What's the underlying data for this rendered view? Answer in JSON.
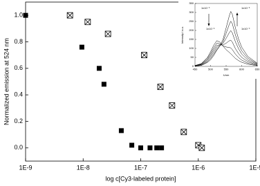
{
  "chart_data": [
    {
      "type": "scatter",
      "x_label": "log c[Cy3-labeled protein]",
      "y_label": "Normalized emission at 524 nm",
      "xscale": "log",
      "xlim": [
        1e-09,
        1e-05
      ],
      "xticks": [
        {
          "value": 1e-09,
          "label": "1E-9"
        },
        {
          "value": 1e-08,
          "label": "1E-8"
        },
        {
          "value": 1e-07,
          "label": "1E-7"
        },
        {
          "value": 1e-06,
          "label": "1E-6"
        },
        {
          "value": 1e-05,
          "label": "1E-5"
        }
      ],
      "ylim": [
        -0.1,
        1.1
      ],
      "yticks": [
        {
          "value": 0,
          "label": "0.0"
        },
        {
          "value": 0.2,
          "label": "0.2"
        },
        {
          "value": 0.4,
          "label": "0.4"
        },
        {
          "value": 0.6,
          "label": "0.6"
        },
        {
          "value": 0.8,
          "label": "0.8"
        },
        {
          "value": 1,
          "label": "1.0"
        }
      ],
      "series": [
        {
          "marker": "square-filled",
          "color": "#000000",
          "x": [
            1e-09,
            9.5e-09,
            1.9e-08,
            2.3e-08,
            4.6e-08,
            7e-08,
            1e-07,
            1.45e-07,
            1.9e-07,
            2.3e-07
          ],
          "values": [
            1.0,
            0.76,
            0.6,
            0.48,
            0.13,
            0.02,
            0.0,
            0.0,
            0.0,
            0.0
          ]
        },
        {
          "marker": "square-cross",
          "color": "#000000",
          "x": [
            5.9e-09,
            1.2e-08,
            2.7e-08,
            1.15e-07,
            2.2e-07,
            3.5e-07,
            5.6e-07,
            1e-06,
            1.15e-06
          ],
          "values": [
            1.0,
            0.95,
            0.86,
            0.7,
            0.46,
            0.32,
            0.12,
            0.02,
            0.0
          ]
        }
      ]
    },
    {
      "type": "line",
      "x_label": "λ/nm",
      "y_label": "Intensity / a.u.",
      "xlim": [
        450,
        650
      ],
      "xticks": [
        450,
        500,
        550,
        600,
        650
      ],
      "ylim": [
        0,
        350
      ],
      "yticks": [
        0,
        50,
        100,
        150,
        200,
        250,
        300,
        350
      ],
      "x": [
        450,
        470,
        490,
        500,
        510,
        520,
        530,
        540,
        550,
        560,
        565,
        570,
        580,
        590,
        600,
        620,
        650
      ],
      "series": [
        {
          "color": "#000000",
          "values": [
            5,
            15,
            50,
            81,
            117,
            143,
            135,
            113,
            93,
            78,
            70,
            61,
            44,
            32,
            23,
            12,
            4
          ]
        },
        {
          "color": "#000000",
          "values": [
            4,
            13,
            44,
            71,
            103,
            129,
            126,
            114,
            108,
            105,
            103,
            93,
            68,
            49,
            35,
            18,
            6
          ]
        },
        {
          "color": "#000000",
          "values": [
            4,
            11,
            38,
            62,
            91,
            117,
            120,
            119,
            129,
            142,
            146,
            135,
            98,
            71,
            50,
            26,
            9
          ]
        },
        {
          "color": "#000000",
          "values": [
            3,
            9,
            32,
            53,
            79,
            106,
            117,
            128,
            156,
            187,
            199,
            186,
            136,
            98,
            69,
            35,
            12
          ]
        },
        {
          "color": "#000000",
          "values": [
            2,
            6,
            26,
            44,
            68,
            95,
            113,
            137,
            184,
            233,
            251,
            237,
            174,
            124,
            87,
            45,
            15
          ]
        },
        {
          "color": "#000000",
          "values": [
            2,
            5,
            22,
            37,
            60,
            89,
            114,
            150,
            214,
            280,
            306,
            289,
            213,
            152,
            107,
            55,
            18
          ]
        }
      ],
      "annotations": [
        "1x10⁻⁹",
        "1x10⁻⁶",
        "1x10⁻⁶",
        "1x10⁻⁹"
      ]
    }
  ]
}
